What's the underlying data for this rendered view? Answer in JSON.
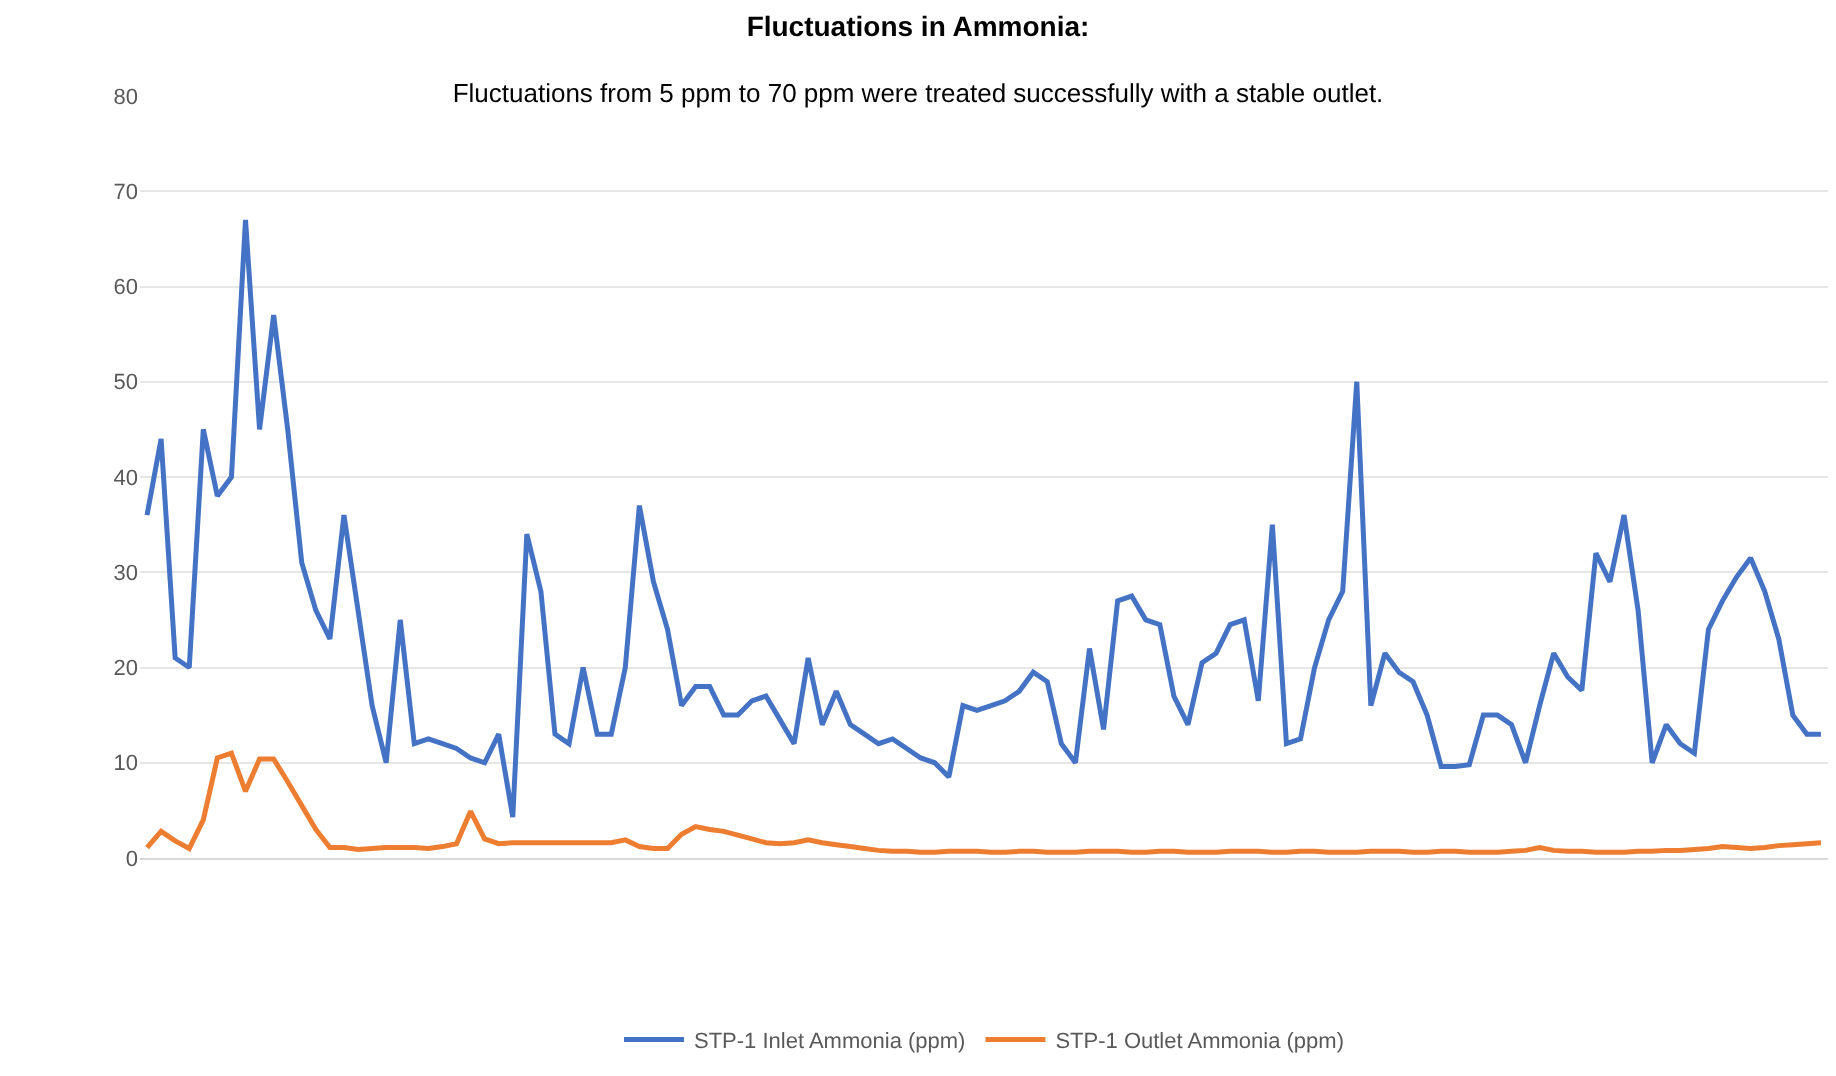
{
  "chart_data": {
    "type": "line",
    "title": "Fluctuations in Ammonia:",
    "subtitle": "Fluctuations from 5 ppm to 70 ppm were treated successfully with a stable outlet.",
    "categories": [
      null,
      null,
      null,
      null,
      null,
      null,
      null,
      null,
      null,
      null,
      null,
      null,
      null,
      null,
      null,
      null,
      null,
      null,
      null,
      null,
      null,
      null,
      null,
      null,
      null,
      null,
      null,
      null,
      null,
      null,
      null,
      null,
      null,
      null,
      null,
      null,
      null,
      null,
      null,
      null,
      null,
      null,
      null,
      null,
      null,
      null,
      null,
      null,
      null,
      null,
      null,
      null,
      null,
      null,
      null,
      null,
      null,
      null,
      null,
      null,
      null,
      null,
      null,
      null,
      null,
      null,
      null,
      null,
      null,
      null,
      null,
      null,
      null,
      null,
      null,
      null,
      null,
      null,
      null,
      null,
      null,
      null,
      null,
      null,
      null,
      null,
      null,
      null,
      null,
      null,
      null,
      null,
      null,
      null,
      null,
      null,
      null,
      null,
      null,
      null,
      null,
      null,
      null,
      null,
      null,
      null,
      null,
      null,
      null,
      null,
      null,
      null,
      null,
      null,
      null,
      null,
      null,
      null,
      null,
      null
    ],
    "series": [
      {
        "name": "STP-1 Inlet Ammonia (ppm)",
        "color": "#4472c4",
        "values": [
          36,
          44,
          21,
          20,
          45,
          38,
          40,
          67,
          45,
          57,
          45,
          31,
          26,
          23,
          36,
          26,
          16,
          10,
          25,
          12,
          12.5,
          12,
          11.5,
          10.5,
          10,
          13,
          4.3,
          34,
          28,
          13,
          12,
          20,
          13,
          13,
          20,
          37,
          29,
          24,
          16,
          18,
          18,
          15,
          15,
          16.5,
          17,
          14.5,
          12,
          21,
          14,
          17.5,
          14,
          13,
          12,
          12.5,
          11.5,
          10.5,
          10,
          8.5,
          16,
          15.5,
          16,
          16.5,
          17.5,
          19.5,
          18.5,
          12,
          10,
          22,
          13.5,
          27,
          27.5,
          25,
          24.5,
          17,
          14,
          20.5,
          21.5,
          24.5,
          25,
          16.5,
          35,
          12,
          12.5,
          20,
          25,
          28,
          50,
          16,
          21.5,
          19.5,
          18.5,
          15,
          9.6,
          9.6,
          9.8,
          15,
          15,
          14,
          10,
          16,
          21.5,
          19,
          17.6,
          32,
          29,
          36,
          26,
          10,
          14,
          12,
          11,
          24,
          27,
          29.5,
          31.5,
          28,
          23,
          15,
          13,
          13
        ]
      },
      {
        "name": "STP-1 Outlet Ammonia (ppm)",
        "color": "#ed7d31",
        "values": [
          1.1,
          2.8,
          1.8,
          1,
          4,
          10.5,
          11,
          7,
          10.4,
          10.4,
          8,
          5.5,
          3,
          1.1,
          1.1,
          0.9,
          1,
          1.1,
          1.1,
          1.1,
          1,
          1.2,
          1.5,
          4.9,
          2,
          1.5,
          1.6,
          1.6,
          1.6,
          1.6,
          1.6,
          1.6,
          1.6,
          1.6,
          1.9,
          1.2,
          1,
          1,
          2.5,
          3.3,
          3,
          2.8,
          2.4,
          2,
          1.6,
          1.5,
          1.6,
          1.9,
          1.6,
          1.4,
          1.2,
          1,
          0.8,
          0.7,
          0.7,
          0.6,
          0.6,
          0.7,
          0.7,
          0.7,
          0.6,
          0.6,
          0.7,
          0.7,
          0.6,
          0.6,
          0.6,
          0.7,
          0.7,
          0.7,
          0.6,
          0.6,
          0.7,
          0.7,
          0.6,
          0.6,
          0.6,
          0.7,
          0.7,
          0.7,
          0.6,
          0.6,
          0.7,
          0.7,
          0.6,
          0.6,
          0.6,
          0.7,
          0.7,
          0.7,
          0.6,
          0.6,
          0.7,
          0.7,
          0.6,
          0.6,
          0.6,
          0.7,
          0.8,
          1.1,
          0.8,
          0.7,
          0.7,
          0.6,
          0.6,
          0.6,
          0.7,
          0.7,
          0.8,
          0.8,
          0.9,
          1,
          1.2,
          1.1,
          1,
          1.1,
          1.3,
          1.4,
          1.5,
          1.6
        ]
      }
    ],
    "ylim": [
      0,
      80
    ],
    "yticks": [
      0,
      10,
      20,
      30,
      40,
      50,
      60,
      70,
      80
    ],
    "grid": "y",
    "legend": "bottom",
    "marker": "none",
    "line_style": "solid"
  }
}
